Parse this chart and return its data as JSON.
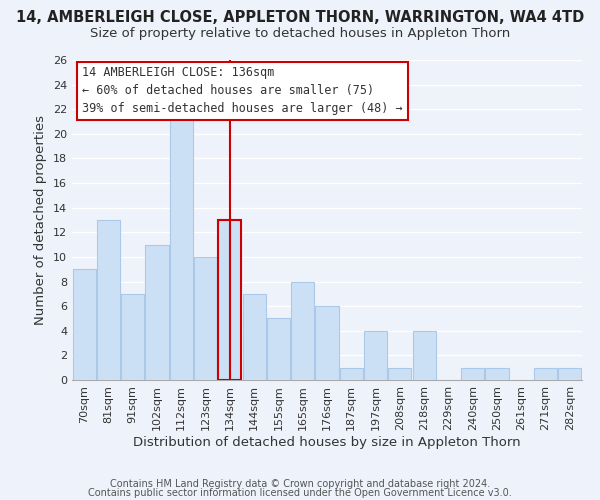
{
  "title": "14, AMBERLEIGH CLOSE, APPLETON THORN, WARRINGTON, WA4 4TD",
  "subtitle": "Size of property relative to detached houses in Appleton Thorn",
  "xlabel": "Distribution of detached houses by size in Appleton Thorn",
  "ylabel": "Number of detached properties",
  "bar_labels": [
    "70sqm",
    "81sqm",
    "91sqm",
    "102sqm",
    "112sqm",
    "123sqm",
    "134sqm",
    "144sqm",
    "155sqm",
    "165sqm",
    "176sqm",
    "187sqm",
    "197sqm",
    "208sqm",
    "218sqm",
    "229sqm",
    "240sqm",
    "250sqm",
    "261sqm",
    "271sqm",
    "282sqm"
  ],
  "bar_values": [
    9,
    13,
    7,
    11,
    22,
    10,
    13,
    7,
    5,
    8,
    6,
    1,
    4,
    1,
    4,
    0,
    1,
    1,
    0,
    1,
    1
  ],
  "bar_color": "#cce0f5",
  "bar_edge_color": "#aac8e8",
  "highlight_bar_index": 6,
  "highlight_edge_color": "#cc0000",
  "vline_x": 6,
  "vline_color": "#cc0000",
  "ylim": [
    0,
    26
  ],
  "yticks": [
    0,
    2,
    4,
    6,
    8,
    10,
    12,
    14,
    16,
    18,
    20,
    22,
    24,
    26
  ],
  "annotation_title": "14 AMBERLEIGH CLOSE: 136sqm",
  "annotation_line1": "← 60% of detached houses are smaller (75)",
  "annotation_line2": "39% of semi-detached houses are larger (48) →",
  "annotation_box_edge": "#cc0000",
  "annotation_box_face": "#ffffff",
  "footer1": "Contains HM Land Registry data © Crown copyright and database right 2024.",
  "footer2": "Contains public sector information licensed under the Open Government Licence v3.0.",
  "background_color": "#eef2fa",
  "grid_color": "#ffffff",
  "title_fontsize": 10.5,
  "subtitle_fontsize": 9.5,
  "axis_label_fontsize": 9.5,
  "tick_fontsize": 8,
  "annotation_fontsize": 8.5,
  "footer_fontsize": 7
}
